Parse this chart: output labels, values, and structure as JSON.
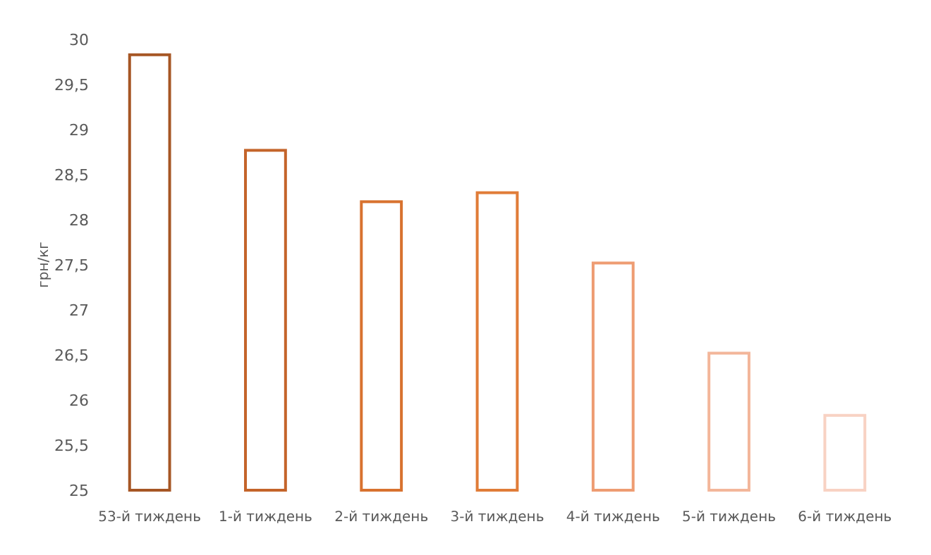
{
  "chart_data": {
    "type": "bar",
    "ylabel": "грн/кг",
    "categories": [
      "53-й тиждень",
      "1-й тиждень",
      "2-й тиждень",
      "3-й тиждень",
      "4-й тиждень",
      "5-й тиждень",
      "6-й тиждень"
    ],
    "values": [
      29.83,
      28.77,
      28.2,
      28.3,
      27.52,
      26.52,
      25.83
    ],
    "colors": [
      "#a65624",
      "#c4642a",
      "#d8722f",
      "#e07c38",
      "#ee9c72",
      "#f3b69a",
      "#f8d2c3"
    ],
    "ylim": [
      25,
      30
    ],
    "yticks": [
      25,
      {
        "value": 25.5,
        "label": "25,5"
      },
      26,
      {
        "value": 26.5,
        "label": "26,5"
      },
      27,
      {
        "value": 27.5,
        "label": "27,5"
      },
      28,
      {
        "value": 28.5,
        "label": "28,5"
      },
      29,
      {
        "value": 29.5,
        "label": "29,5"
      },
      30
    ],
    "grid": false
  }
}
